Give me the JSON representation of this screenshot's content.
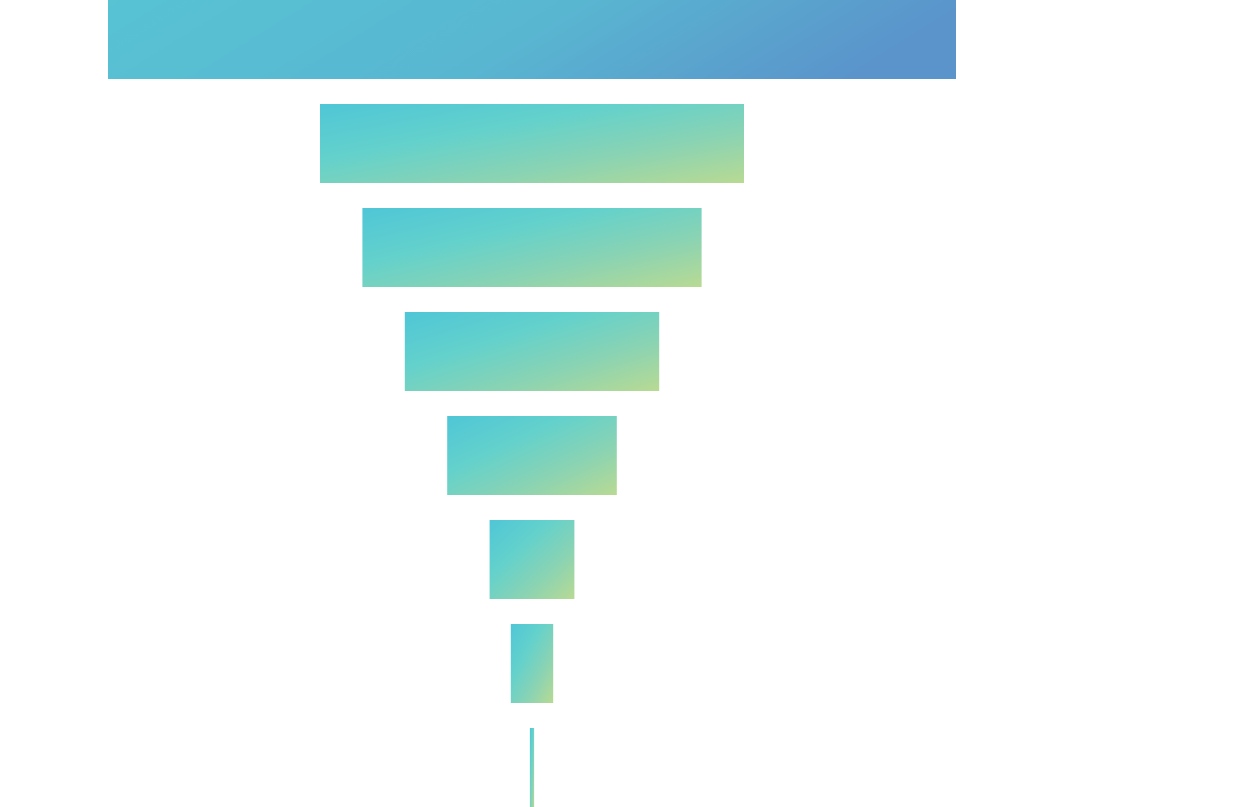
{
  "chart_data": {
    "type": "funnel",
    "title": "",
    "series": [
      {
        "values": [
          100,
          50,
          40,
          30,
          20,
          10,
          5,
          0.5
        ]
      }
    ],
    "colors": {
      "top": "#4fb6cf",
      "upper": "#55c8d6",
      "middle": "#66d0ca",
      "lower": "#86d2b6",
      "bottom": "#b4d89a",
      "accent_right": "#5a8fcb"
    },
    "grid": false,
    "legend": "none"
  }
}
